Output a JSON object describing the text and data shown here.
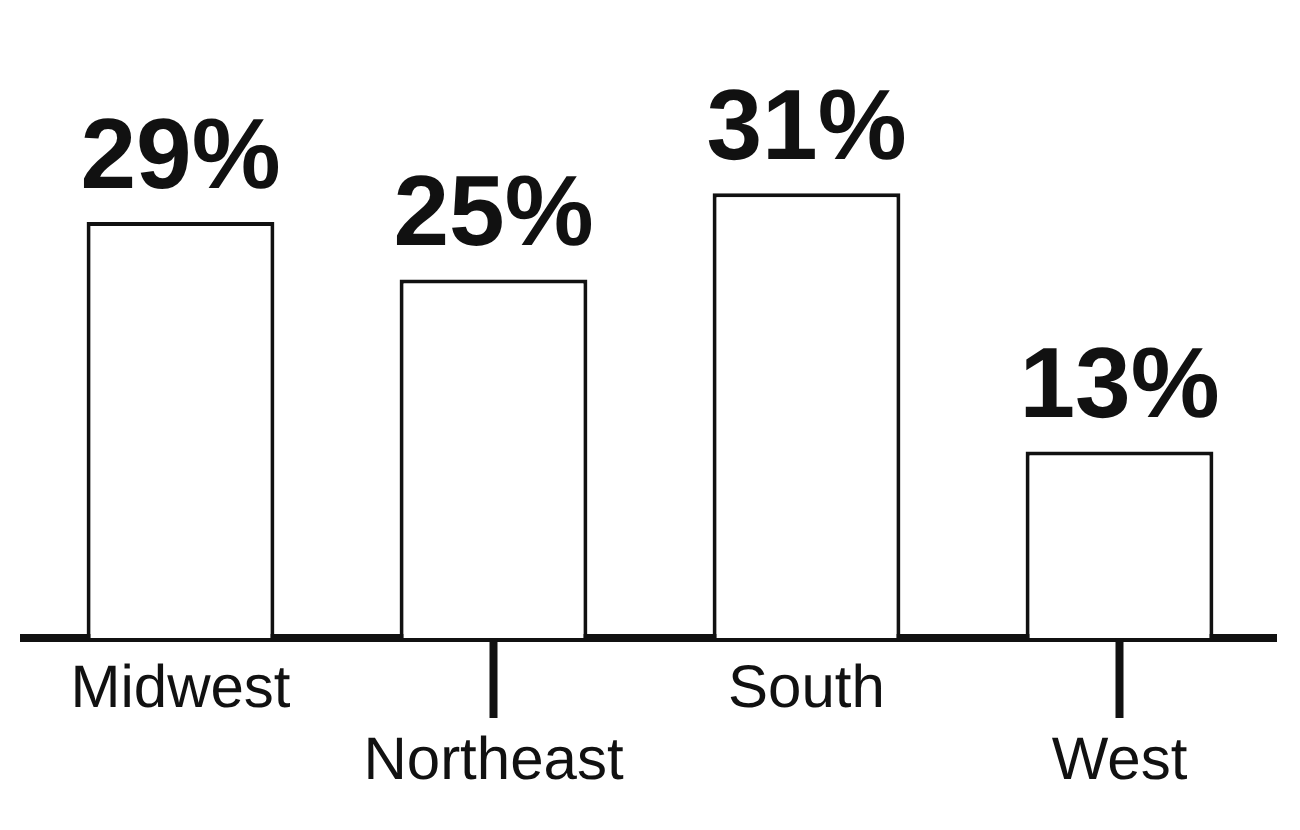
{
  "chart_data": {
    "type": "bar",
    "categories": [
      "Midwest",
      "Northeast",
      "South",
      "West"
    ],
    "values": [
      29,
      25,
      31,
      13
    ],
    "value_labels": [
      "29%",
      "25%",
      "31%",
      "13%"
    ],
    "color": "#ffffff",
    "grid": false,
    "legend": false,
    "tick_labels": "x"
  }
}
